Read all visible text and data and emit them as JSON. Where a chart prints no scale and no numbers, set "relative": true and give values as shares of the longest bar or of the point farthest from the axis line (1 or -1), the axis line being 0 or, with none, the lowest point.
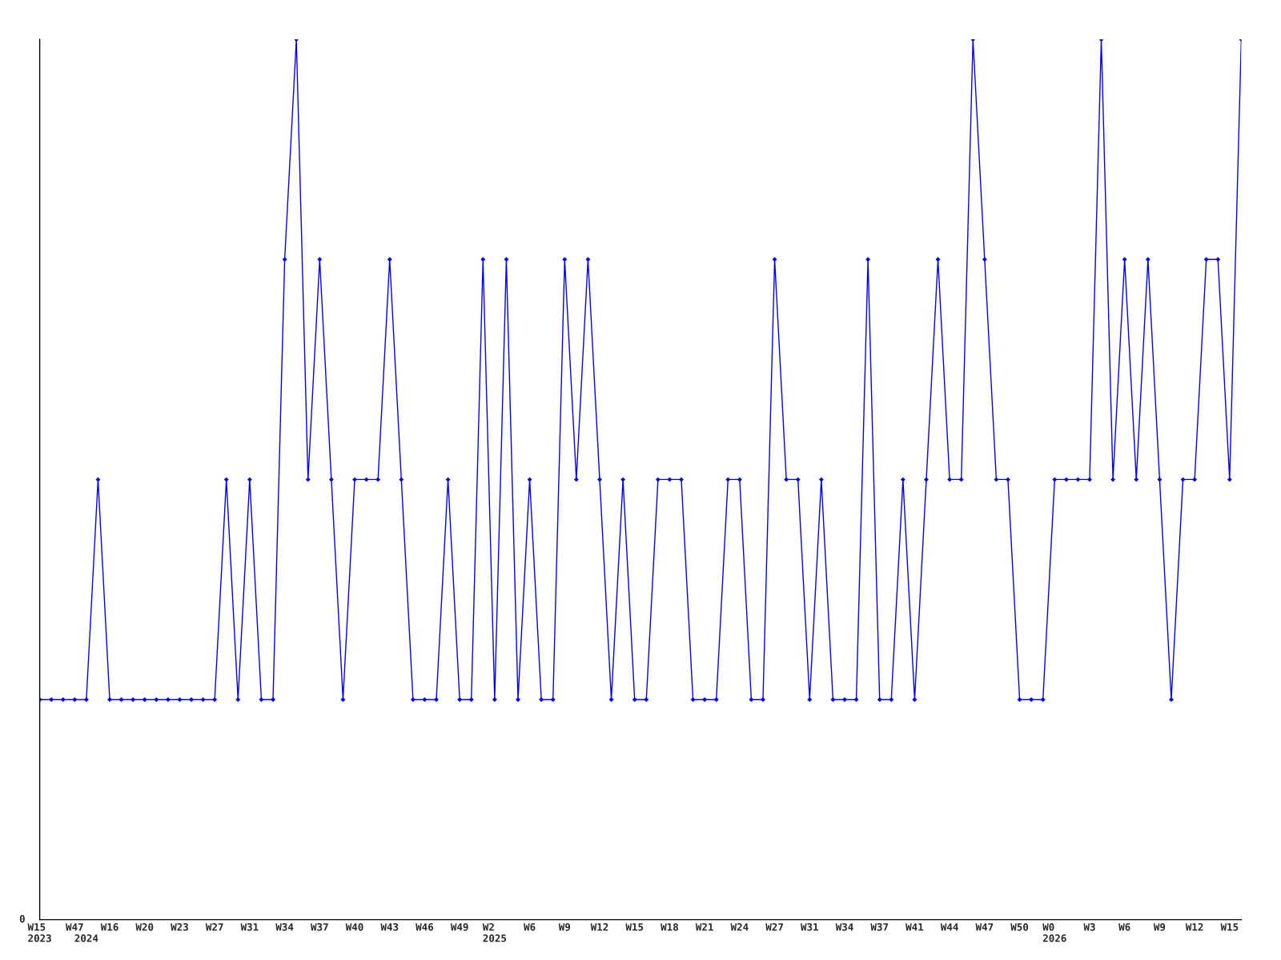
{
  "chart_data": {
    "type": "line",
    "relative": true,
    "marker": "diamond",
    "line_style": "solid",
    "grid": false,
    "annotations": [
      "0"
    ],
    "categories": [
      "W15\n2023",
      null,
      null,
      "W47",
      "\n2024",
      null,
      "W16",
      null,
      null,
      "W20",
      null,
      null,
      "W23",
      null,
      null,
      "W27",
      null,
      null,
      "W31",
      null,
      null,
      "W34",
      null,
      null,
      "W37",
      null,
      null,
      "W40",
      null,
      null,
      "W43",
      null,
      null,
      "W46",
      null,
      null,
      "W49",
      null,
      null,
      "W2\n2025",
      null,
      null,
      "W6",
      null,
      null,
      "W9",
      null,
      null,
      "W12",
      null,
      null,
      "W15",
      null,
      null,
      "W18",
      null,
      null,
      "W21",
      null,
      null,
      "W24",
      null,
      null,
      "W27",
      null,
      null,
      "W31",
      null,
      null,
      "W34",
      null,
      null,
      "W37",
      null,
      null,
      "W41",
      null,
      null,
      "W44",
      null,
      null,
      "W47",
      null,
      null,
      "W50",
      null,
      null,
      "W0\n2026",
      null,
      null,
      "W3",
      null,
      null,
      "W6",
      null,
      null,
      "W9",
      null,
      null,
      "W12",
      null,
      null,
      "W15",
      null
    ],
    "series": [
      {
        "color": "#0000ff",
        "values": [
          0.25,
          0.25,
          0.25,
          0.25,
          0.25,
          0.5,
          0.25,
          0.25,
          0.25,
          0.25,
          0.25,
          0.25,
          0.25,
          0.25,
          0.25,
          0.25,
          0.5,
          0.25,
          0.5,
          0.25,
          0.25,
          0.75,
          1,
          0.5,
          0.75,
          0.5,
          0.25,
          0.5,
          0.5,
          0.5,
          0.75,
          0.5,
          0.25,
          0.25,
          0.25,
          0.5,
          0.25,
          0.25,
          0.75,
          0.25,
          0.75,
          0.25,
          0.5,
          0.25,
          0.25,
          0.75,
          0.5,
          0.75,
          0.5,
          0.25,
          0.5,
          0.25,
          0.25,
          0.5,
          0.5,
          0.5,
          0.25,
          0.25,
          0.25,
          0.5,
          0.5,
          0.25,
          0.25,
          0.75,
          0.5,
          0.5,
          0.25,
          0.5,
          0.25,
          0.25,
          0.25,
          0.75,
          0.25,
          0.25,
          0.5,
          0.25,
          0.5,
          0.75,
          0.5,
          0.5,
          1,
          0.75,
          0.5,
          0.5,
          0.25,
          0.25,
          0.25,
          0.5,
          0.5,
          0.5,
          0.5,
          1,
          0.5,
          0.75,
          0.5,
          0.75,
          0.5,
          0.25,
          0.5,
          0.5,
          0.75,
          0.75,
          0.5,
          1
        ]
      }
    ]
  }
}
